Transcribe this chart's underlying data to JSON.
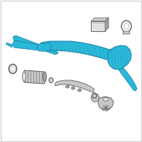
{
  "background_color": "#ffffff",
  "border_color": "#cccccc",
  "main_color": "#2ab8d8",
  "main_dark": "#1a90aa",
  "main_edge": "#1878a0",
  "grey_fill": "#c8c8c8",
  "grey_light": "#e0e0e0",
  "grey_dark": "#606060",
  "grey_mid": "#a0a0a0",
  "figsize": [
    2.0,
    2.0
  ],
  "dpi": 100
}
